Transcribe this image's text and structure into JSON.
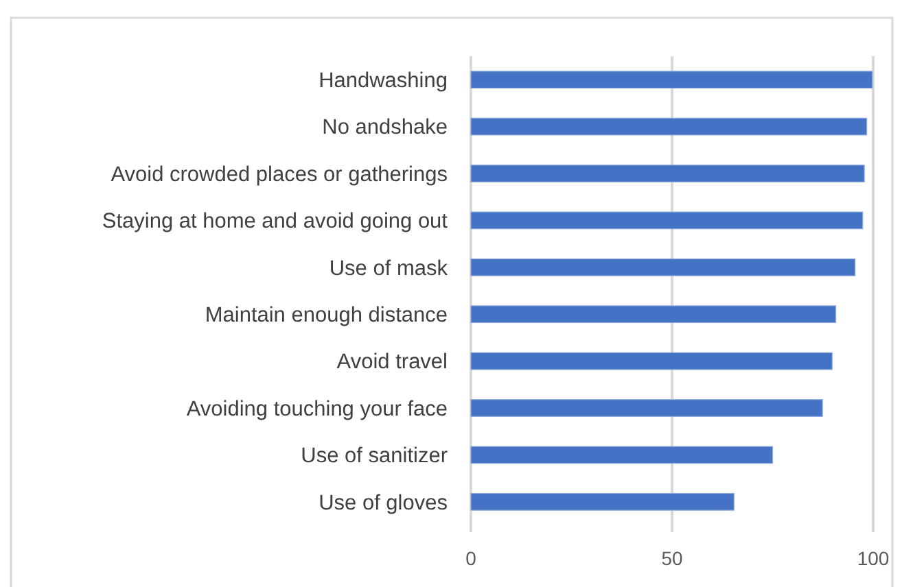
{
  "chart_data": {
    "type": "bar",
    "orientation": "horizontal",
    "categories": [
      "Handwashing",
      "No andshake",
      "Avoid crowded places or gatherings",
      "Staying at home and avoid going out",
      "Use of mask",
      "Maintain enough distance",
      "Avoid travel",
      "Avoiding touching your face",
      "Use of sanitizer",
      "Use of gloves"
    ],
    "values": [
      99.8,
      98.4,
      97.8,
      97.4,
      95.5,
      90.7,
      89.8,
      87.4,
      75,
      65.4
    ],
    "color": "#4472c4",
    "xlim": [
      0,
      100
    ],
    "xticks": [
      0,
      50,
      100
    ],
    "grid": "x"
  }
}
